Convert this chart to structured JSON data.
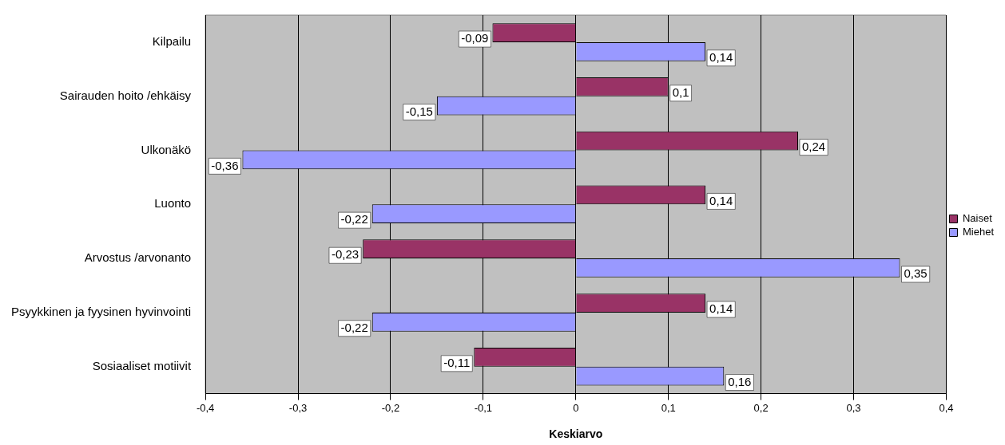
{
  "chart_data": {
    "type": "bar",
    "orientation": "horizontal",
    "xlabel": "Keskiarvo",
    "categories": [
      "Kilpailu",
      "Sairauden hoito /ehkäisy",
      "Ulkonäkö",
      "Luonto",
      "Arvostus /arvonanto",
      "Psyykkinen ja fyysinen hyvinvointi",
      "Sosiaaliset motiivit"
    ],
    "series": [
      {
        "name": "Naiset",
        "color": "#993366",
        "values": [
          -0.09,
          0.1,
          0.24,
          0.14,
          -0.23,
          0.14,
          -0.11
        ],
        "value_labels": [
          "-0,09",
          "0,1",
          "0,24",
          "0,14",
          "-0,23",
          "0,14",
          "-0,11"
        ]
      },
      {
        "name": "Miehet",
        "color": "#9999ff",
        "values": [
          0.14,
          -0.15,
          -0.36,
          -0.22,
          0.35,
          -0.22,
          0.16
        ],
        "value_labels": [
          "0,14",
          "-0,15",
          "-0,36",
          "-0,22",
          "0,35",
          "-0,22",
          "0,16"
        ]
      }
    ],
    "xlim": [
      -0.4,
      0.4
    ],
    "xticks": [
      {
        "value": -0.4,
        "label": "-0,4"
      },
      {
        "value": -0.3,
        "label": "-0,3"
      },
      {
        "value": -0.2,
        "label": "-0,2"
      },
      {
        "value": -0.1,
        "label": "-0,1"
      },
      {
        "value": 0,
        "label": "0"
      },
      {
        "value": 0.1,
        "label": "0,1"
      },
      {
        "value": 0.2,
        "label": "0,2"
      },
      {
        "value": 0.3,
        "label": "0,3"
      },
      {
        "value": 0.4,
        "label": "0,4"
      }
    ],
    "grid": "x",
    "legend": "right"
  }
}
